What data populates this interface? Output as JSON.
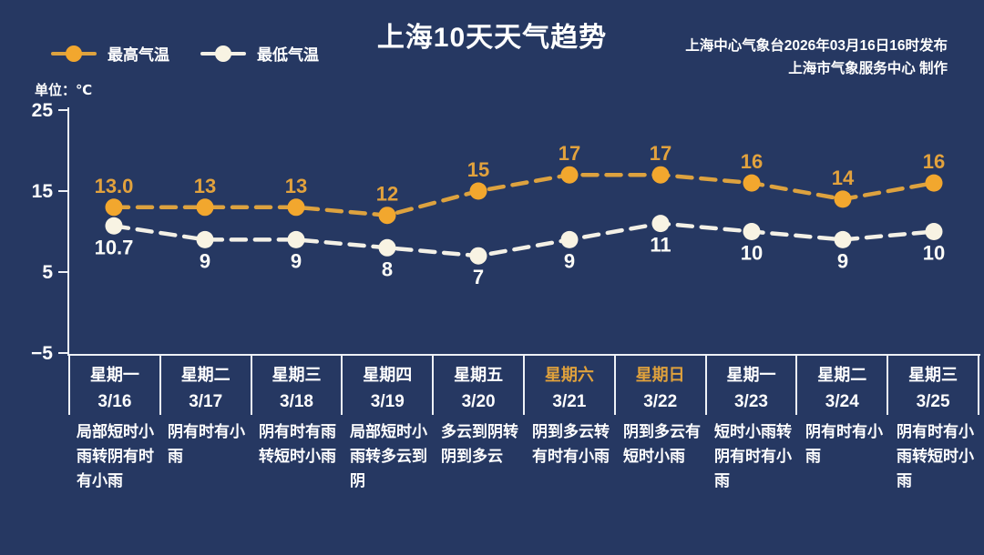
{
  "header": {
    "title": "上海10天天气趋势",
    "publisher_line1": "上海中心气象台2026年03月16日16时发布",
    "publisher_line2": "上海市气象服务中心 制作"
  },
  "legend": {
    "high_label": "最高气温",
    "low_label": "最低气温"
  },
  "unit_label": "单位：℃",
  "colors": {
    "background": "#263862",
    "axis": "#eef1f6",
    "high_marker": "#f2a72e",
    "high_line": "#dda23f",
    "high_value_text": "#e2a23d",
    "low_marker": "#f8f3e3",
    "low_line": "#f3f0e6",
    "low_value_text": "#fdfdf8",
    "weekend_text": "#dfa13c",
    "text": "#ffffff"
  },
  "chart_data": {
    "type": "line",
    "title": "上海10天天气趋势",
    "categories": [
      "3/16",
      "3/17",
      "3/18",
      "3/19",
      "3/20",
      "3/21",
      "3/22",
      "3/23",
      "3/24",
      "3/25"
    ],
    "weekdays": [
      "星期一",
      "星期二",
      "星期三",
      "星期四",
      "星期五",
      "星期六",
      "星期日",
      "星期一",
      "星期二",
      "星期三"
    ],
    "series": [
      {
        "name": "最高气温",
        "values": [
          13.0,
          13,
          13,
          12,
          15,
          17,
          17,
          16,
          14,
          16
        ],
        "labels": [
          "13.0",
          "13",
          "13",
          "12",
          "15",
          "17",
          "17",
          "16",
          "14",
          "16"
        ]
      },
      {
        "name": "最低气温",
        "values": [
          10.7,
          9,
          9,
          8,
          7,
          9,
          11,
          10,
          9,
          10
        ],
        "labels": [
          "10.7",
          "9",
          "9",
          "8",
          "7",
          "9",
          "11",
          "10",
          "9",
          "10"
        ]
      }
    ],
    "ylabel": "单位：℃",
    "yticks": [
      25,
      15,
      5,
      -5
    ],
    "ylim": [
      -5,
      25
    ],
    "grid": false,
    "line_style": "dashed",
    "legend_position": "top-left"
  },
  "days": [
    {
      "weekday": "星期一",
      "date": "3/16",
      "weekend": false,
      "description": "局部短时小雨转阴有时有小雨"
    },
    {
      "weekday": "星期二",
      "date": "3/17",
      "weekend": false,
      "description": "阴有时有小雨"
    },
    {
      "weekday": "星期三",
      "date": "3/18",
      "weekend": false,
      "description": "阴有时有雨转短时小雨"
    },
    {
      "weekday": "星期四",
      "date": "3/19",
      "weekend": false,
      "description": "局部短时小雨转多云到阴"
    },
    {
      "weekday": "星期五",
      "date": "3/20",
      "weekend": false,
      "description": "多云到阴转阴到多云"
    },
    {
      "weekday": "星期六",
      "date": "3/21",
      "weekend": true,
      "description": "阴到多云转有时有小雨"
    },
    {
      "weekday": "星期日",
      "date": "3/22",
      "weekend": true,
      "description": "阴到多云有短时小雨"
    },
    {
      "weekday": "星期一",
      "date": "3/23",
      "weekend": false,
      "description": "短时小雨转阴有时有小雨"
    },
    {
      "weekday": "星期二",
      "date": "3/24",
      "weekend": false,
      "description": "阴有时有小雨"
    },
    {
      "weekday": "星期三",
      "date": "3/25",
      "weekend": false,
      "description": "阴有时有小雨转短时小雨"
    }
  ]
}
